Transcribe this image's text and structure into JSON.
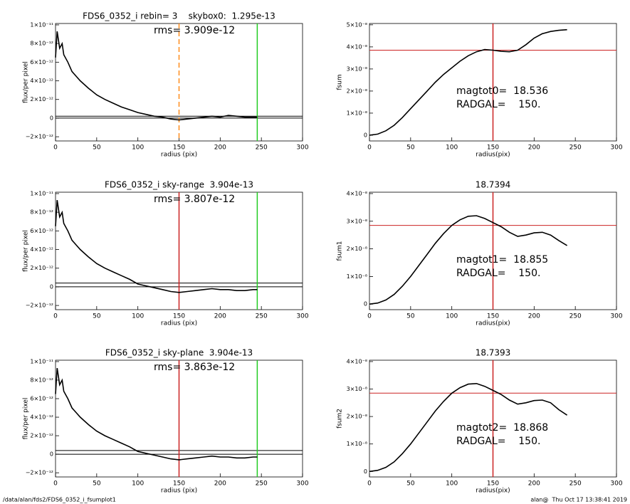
{
  "chart_data": [
    {
      "type": "line",
      "title": "FDS6_0352_i rebin= 3    skybox0:  1.295e-13",
      "annotations": [
        "rms= 3.909e-12"
      ],
      "xlabel": "radius (pix)",
      "ylabel": "flux/per pixel",
      "xlim": [
        0,
        300
      ],
      "xticks": [
        0,
        50,
        100,
        150,
        200,
        250,
        300
      ],
      "ylim": [
        -2.45e-12,
        1.015e-11
      ],
      "yticks": [
        {
          "value": -2e-12,
          "label": "−2×10⁻¹²"
        },
        {
          "value": 0,
          "label": "0"
        },
        {
          "value": 2e-12,
          "label": "2×10⁻¹²"
        },
        {
          "value": 4e-12,
          "label": "4×10⁻¹²"
        },
        {
          "value": 6e-12,
          "label": "6×10⁻¹²"
        },
        {
          "value": 8e-12,
          "label": "8×10⁻¹²"
        },
        {
          "value": 1e-11,
          "label": "1×10⁻¹¹"
        }
      ],
      "x": [
        0,
        2,
        5,
        8,
        10,
        15,
        20,
        25,
        30,
        40,
        50,
        60,
        70,
        80,
        90,
        100,
        110,
        120,
        130,
        140,
        150,
        160,
        170,
        180,
        190,
        200,
        210,
        220,
        230,
        240,
        245
      ],
      "series": [
        {
          "color": "#000000",
          "values": [
            6.5e-12,
            9.3e-12,
            7.5e-12,
            8e-12,
            6.8e-12,
            6e-12,
            5e-12,
            4.5e-12,
            4e-12,
            3.2e-12,
            2.5e-12,
            2e-12,
            1.6e-12,
            1.2e-12,
            9e-13,
            6e-13,
            4e-13,
            2e-13,
            1e-13,
            -1e-13,
            -2e-13,
            -1e-13,
            0,
            1e-13,
            2e-13,
            1e-13,
            3e-13,
            2e-13,
            1e-13,
            1e-13,
            1e-13
          ]
        }
      ],
      "vlines": [
        {
          "x": 150,
          "color": "#ff8c1a",
          "dash": true
        },
        {
          "x": 245,
          "color": "#22cc22",
          "dash": false
        }
      ],
      "hlines": [
        {
          "y": 2e-13,
          "color": "#000000"
        },
        {
          "y": 0,
          "color": "#000000"
        }
      ]
    },
    {
      "type": "line",
      "annotations": [
        "magtot0=  18.536",
        "RADGAL=    150."
      ],
      "xlabel": "radius(pix)",
      "ylabel": "fsum",
      "xlim": [
        0,
        300
      ],
      "xticks": [
        0,
        50,
        100,
        150,
        200,
        250,
        300
      ],
      "ylim": [
        -2.6e-09,
        5.06e-08
      ],
      "yticks": [
        {
          "value": 0,
          "label": "0"
        },
        {
          "value": 1e-08,
          "label": "1×10⁻⁸"
        },
        {
          "value": 2e-08,
          "label": "2×10⁻⁸"
        },
        {
          "value": 3e-08,
          "label": "3×10⁻⁸"
        },
        {
          "value": 4e-08,
          "label": "4×10⁻⁸"
        },
        {
          "value": 5e-08,
          "label": "5×10⁻⁸"
        }
      ],
      "x": [
        0,
        10,
        20,
        30,
        40,
        50,
        60,
        70,
        80,
        90,
        100,
        110,
        120,
        130,
        140,
        150,
        160,
        170,
        180,
        190,
        200,
        210,
        220,
        230,
        240
      ],
      "series": [
        {
          "color": "#000000",
          "values": [
            0,
            5e-10,
            2e-09,
            4.5e-09,
            8e-09,
            1.2e-08,
            1.6e-08,
            2e-08,
            2.4e-08,
            2.75e-08,
            3.05e-08,
            3.35e-08,
            3.6e-08,
            3.78e-08,
            3.88e-08,
            3.85e-08,
            3.8e-08,
            3.78e-08,
            3.85e-08,
            4.1e-08,
            4.4e-08,
            4.6e-08,
            4.7e-08,
            4.75e-08,
            4.78e-08
          ]
        }
      ],
      "vlines": [
        {
          "x": 150,
          "color": "#cc2222",
          "dash": false
        }
      ],
      "hlines": [
        {
          "y": 3.85e-08,
          "color": "#cc2222"
        }
      ]
    },
    {
      "type": "line",
      "title": "FDS6_0352_i sky-range  3.904e-13",
      "annotations": [
        "rms= 3.807e-12"
      ],
      "xlabel": "radius (pix)",
      "ylabel": "flux/per pixel",
      "xlim": [
        0,
        300
      ],
      "xticks": [
        0,
        50,
        100,
        150,
        200,
        250,
        300
      ],
      "ylim": [
        -2.45e-12,
        1.015e-11
      ],
      "yticks": [
        {
          "value": -2e-12,
          "label": "−2×10⁻¹²"
        },
        {
          "value": 0,
          "label": "0"
        },
        {
          "value": 2e-12,
          "label": "2×10⁻¹²"
        },
        {
          "value": 4e-12,
          "label": "4×10⁻¹²"
        },
        {
          "value": 6e-12,
          "label": "6×10⁻¹²"
        },
        {
          "value": 8e-12,
          "label": "8×10⁻¹²"
        },
        {
          "value": 1e-11,
          "label": "1×10⁻¹¹"
        }
      ],
      "x": [
        0,
        2,
        5,
        8,
        10,
        15,
        20,
        25,
        30,
        40,
        50,
        60,
        70,
        80,
        90,
        100,
        110,
        120,
        130,
        140,
        150,
        160,
        170,
        180,
        190,
        200,
        210,
        220,
        230,
        240,
        245
      ],
      "series": [
        {
          "color": "#000000",
          "values": [
            6.5e-12,
            9.3e-12,
            7.5e-12,
            8e-12,
            6.8e-12,
            6e-12,
            5e-12,
            4.5e-12,
            4e-12,
            3.2e-12,
            2.5e-12,
            2e-12,
            1.6e-12,
            1.2e-12,
            8e-13,
            3e-13,
            1e-13,
            -1e-13,
            -3e-13,
            -5e-13,
            -6e-13,
            -5e-13,
            -4e-13,
            -3e-13,
            -2e-13,
            -3e-13,
            -3e-13,
            -4e-13,
            -4e-13,
            -3e-13,
            -3e-13
          ]
        }
      ],
      "vlines": [
        {
          "x": 150,
          "color": "#cc2222",
          "dash": false
        },
        {
          "x": 245,
          "color": "#22cc22",
          "dash": false
        }
      ],
      "hlines": [
        {
          "y": 4e-13,
          "color": "#000000"
        },
        {
          "y": 0,
          "color": "#000000"
        }
      ]
    },
    {
      "type": "line",
      "title": "18.7394",
      "annotations": [
        "magtot1=  18.855",
        "RADGAL=    150."
      ],
      "xlabel": "radius(pix)",
      "ylabel": "fsum1",
      "xlim": [
        0,
        300
      ],
      "xticks": [
        0,
        50,
        100,
        150,
        200,
        250,
        300
      ],
      "ylim": [
        -2e-09,
        4.05e-08
      ],
      "yticks": [
        {
          "value": 0,
          "label": "0"
        },
        {
          "value": 1e-08,
          "label": "1×10⁻⁸"
        },
        {
          "value": 2e-08,
          "label": "2×10⁻⁸"
        },
        {
          "value": 3e-08,
          "label": "3×10⁻⁸"
        },
        {
          "value": 4e-08,
          "label": "4×10⁻⁸"
        }
      ],
      "x": [
        0,
        10,
        20,
        30,
        40,
        50,
        60,
        70,
        80,
        90,
        100,
        110,
        120,
        130,
        140,
        150,
        160,
        170,
        180,
        190,
        200,
        210,
        220,
        230,
        240
      ],
      "series": [
        {
          "color": "#000000",
          "values": [
            0,
            4e-10,
            1.5e-09,
            3.5e-09,
            6.5e-09,
            1e-08,
            1.4e-08,
            1.8e-08,
            2.2e-08,
            2.55e-08,
            2.85e-08,
            3.05e-08,
            3.18e-08,
            3.2e-08,
            3.1e-08,
            2.95e-08,
            2.8e-08,
            2.6e-08,
            2.45e-08,
            2.5e-08,
            2.58e-08,
            2.6e-08,
            2.5e-08,
            2.3e-08,
            2.12e-08
          ]
        }
      ],
      "vlines": [
        {
          "x": 150,
          "color": "#cc2222",
          "dash": false
        }
      ],
      "hlines": [
        {
          "y": 2.85e-08,
          "color": "#cc2222"
        }
      ]
    },
    {
      "type": "line",
      "title": "FDS6_0352_i sky-plane  3.904e-13",
      "annotations": [
        "rms= 3.863e-12"
      ],
      "xlabel": "radius (pix)",
      "ylabel": "flux/per pixel",
      "xlim": [
        0,
        300
      ],
      "xticks": [
        0,
        50,
        100,
        150,
        200,
        250,
        300
      ],
      "ylim": [
        -2.45e-12,
        1.015e-11
      ],
      "yticks": [
        {
          "value": -2e-12,
          "label": "−2×10⁻¹²"
        },
        {
          "value": 0,
          "label": "0"
        },
        {
          "value": 2e-12,
          "label": "2×10⁻¹²"
        },
        {
          "value": 4e-12,
          "label": "4×10⁻¹²"
        },
        {
          "value": 6e-12,
          "label": "6×10⁻¹²"
        },
        {
          "value": 8e-12,
          "label": "8×10⁻¹²"
        },
        {
          "value": 1e-11,
          "label": "1×10⁻¹¹"
        }
      ],
      "x": [
        0,
        2,
        5,
        8,
        10,
        15,
        20,
        25,
        30,
        40,
        50,
        60,
        70,
        80,
        90,
        100,
        110,
        120,
        130,
        140,
        150,
        160,
        170,
        180,
        190,
        200,
        210,
        220,
        230,
        240,
        245
      ],
      "series": [
        {
          "color": "#000000",
          "values": [
            6.5e-12,
            9.3e-12,
            7.5e-12,
            8e-12,
            6.8e-12,
            6e-12,
            5e-12,
            4.5e-12,
            4e-12,
            3.2e-12,
            2.5e-12,
            2e-12,
            1.6e-12,
            1.2e-12,
            8e-13,
            3e-13,
            1e-13,
            -1e-13,
            -3e-13,
            -5e-13,
            -6e-13,
            -5e-13,
            -4e-13,
            -3e-13,
            -2e-13,
            -3e-13,
            -3e-13,
            -4e-13,
            -4e-13,
            -3e-13,
            -3e-13
          ]
        }
      ],
      "vlines": [
        {
          "x": 150,
          "color": "#cc2222",
          "dash": false
        },
        {
          "x": 245,
          "color": "#22cc22",
          "dash": false
        }
      ],
      "hlines": [
        {
          "y": 4e-13,
          "color": "#000000"
        },
        {
          "y": 0,
          "color": "#000000"
        }
      ]
    },
    {
      "type": "line",
      "title": "18.7393",
      "annotations": [
        "magtot2=  18.868",
        "RADGAL=    150."
      ],
      "xlabel": "radius(pix)",
      "ylabel": "fsum2",
      "xlim": [
        0,
        300
      ],
      "xticks": [
        0,
        50,
        100,
        150,
        200,
        250,
        300
      ],
      "ylim": [
        -2e-09,
        4.05e-08
      ],
      "yticks": [
        {
          "value": 0,
          "label": "0"
        },
        {
          "value": 1e-08,
          "label": "1×10⁻⁸"
        },
        {
          "value": 2e-08,
          "label": "2×10⁻⁸"
        },
        {
          "value": 3e-08,
          "label": "3×10⁻⁸"
        },
        {
          "value": 4e-08,
          "label": "4×10⁻⁸"
        }
      ],
      "x": [
        0,
        10,
        20,
        30,
        40,
        50,
        60,
        70,
        80,
        90,
        100,
        110,
        120,
        130,
        140,
        150,
        160,
        170,
        180,
        190,
        200,
        210,
        220,
        230,
        240
      ],
      "series": [
        {
          "color": "#000000",
          "values": [
            0,
            4e-10,
            1.5e-09,
            3.5e-09,
            6.5e-09,
            1e-08,
            1.4e-08,
            1.8e-08,
            2.2e-08,
            2.55e-08,
            2.85e-08,
            3.05e-08,
            3.18e-08,
            3.2e-08,
            3.1e-08,
            2.95e-08,
            2.8e-08,
            2.6e-08,
            2.45e-08,
            2.5e-08,
            2.58e-08,
            2.6e-08,
            2.5e-08,
            2.25e-08,
            2.05e-08
          ]
        }
      ],
      "vlines": [
        {
          "x": 150,
          "color": "#cc2222",
          "dash": false
        }
      ],
      "hlines": [
        {
          "y": 2.85e-08,
          "color": "#cc2222"
        }
      ]
    }
  ],
  "footer": {
    "left": "/data/alan/fds2/FDS6_0352_i_fsumplot1",
    "right": "alan@  Thu Oct 17 13:38:41 2019"
  }
}
